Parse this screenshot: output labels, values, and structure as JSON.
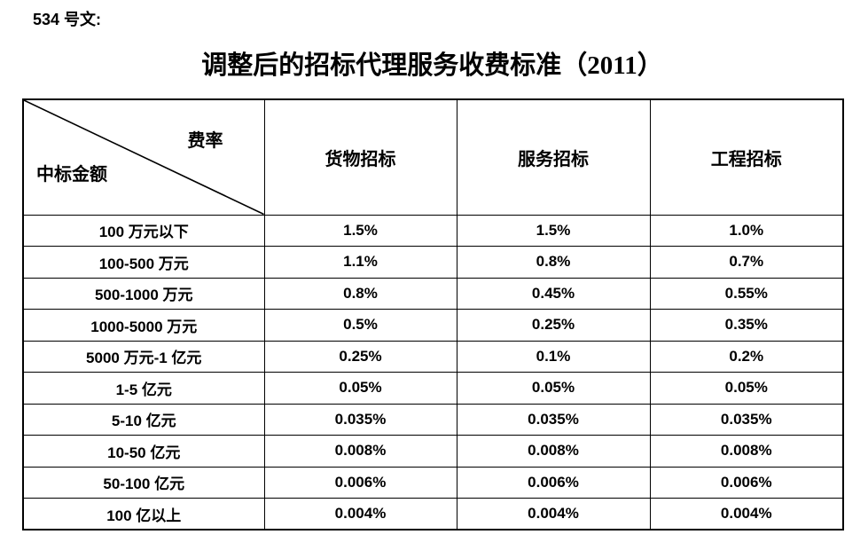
{
  "page": {
    "doc_label": "534 号文:",
    "title": "调整后的招标代理服务收费标准（2011）"
  },
  "table": {
    "corner": {
      "top_right": "费率",
      "bottom_left": "中标金额"
    },
    "columns": [
      "货物招标",
      "服务招标",
      "工程招标"
    ],
    "rows": [
      {
        "label": "100 万元以下",
        "values": [
          "1.5%",
          "1.5%",
          "1.0%"
        ]
      },
      {
        "label": "100-500 万元",
        "values": [
          "1.1%",
          "0.8%",
          "0.7%"
        ]
      },
      {
        "label": "500-1000 万元",
        "values": [
          "0.8%",
          "0.45%",
          "0.55%"
        ]
      },
      {
        "label": "1000-5000 万元",
        "values": [
          "0.5%",
          "0.25%",
          "0.35%"
        ]
      },
      {
        "label": "5000 万元-1 亿元",
        "values": [
          "0.25%",
          "0.1%",
          "0.2%"
        ]
      },
      {
        "label": "1-5 亿元",
        "values": [
          "0.05%",
          "0.05%",
          "0.05%"
        ]
      },
      {
        "label": "5-10 亿元",
        "values": [
          "0.035%",
          "0.035%",
          "0.035%"
        ]
      },
      {
        "label": "10-50 亿元",
        "values": [
          "0.008%",
          "0.008%",
          "0.008%"
        ]
      },
      {
        "label": "50-100 亿元",
        "values": [
          "0.006%",
          "0.006%",
          "0.006%"
        ]
      },
      {
        "label": "100 亿以上",
        "values": [
          "0.004%",
          "0.004%",
          "0.004%"
        ]
      }
    ]
  },
  "colors": {
    "text": "#000000",
    "border": "#000000",
    "background": "#ffffff"
  }
}
